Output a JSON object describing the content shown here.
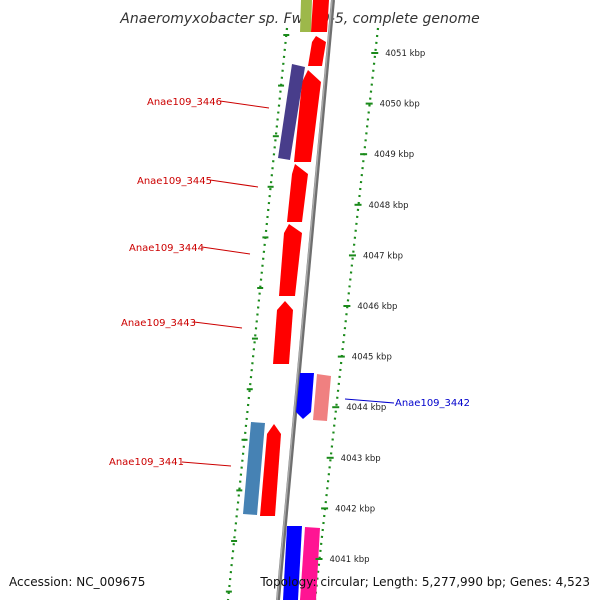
{
  "title": "Anaeromyxobacter sp. Fw109-5, complete genome",
  "footer": {
    "accession": "Accession: NC_009675",
    "topology": "Topology: circular; Length: 5,277,990 bp; Genes: 4,523"
  },
  "ticks": [
    {
      "label": "4051 kbp"
    },
    {
      "label": "4050 kbp"
    },
    {
      "label": "4049 kbp"
    },
    {
      "label": "4048 kbp"
    },
    {
      "label": "4047 kbp"
    },
    {
      "label": "4046 kbp"
    },
    {
      "label": "4045 kbp"
    },
    {
      "label": "4044 kbp"
    },
    {
      "label": "4043 kbp"
    },
    {
      "label": "4042 kbp"
    },
    {
      "label": "4041 kbp"
    }
  ],
  "gene_labels": [
    {
      "text": "Anae109_3446",
      "color": "#cc0000"
    },
    {
      "text": "Anae109_3445",
      "color": "#cc0000"
    },
    {
      "text": "Anae109_3444",
      "color": "#cc0000"
    },
    {
      "text": "Anae109_3443",
      "color": "#cc0000"
    },
    {
      "text": "Anae109_3441",
      "color": "#cc0000"
    },
    {
      "text": "Anae109_3442",
      "color": "#0000cc"
    }
  ],
  "colors": {
    "cds_forward": "#ff0000",
    "cds_reverse": "#0000ff",
    "backbone": "#888888",
    "ruler_dots": "#1a8a1a"
  }
}
